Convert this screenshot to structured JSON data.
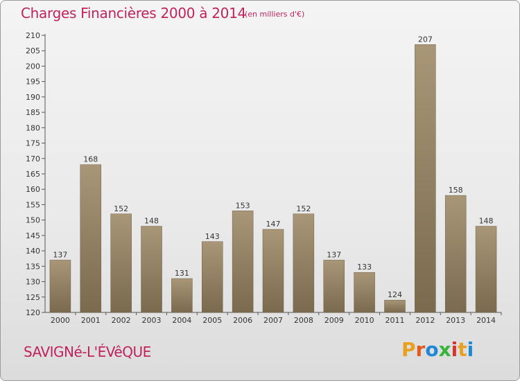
{
  "header": {
    "title": "Charges Financières 2000 à 2014",
    "subtitle": "(en milliers d'€)"
  },
  "footer": {
    "city": "SAVIGNé-L'ÉVêQUE",
    "brand": "Proxiti"
  },
  "colors": {
    "title": "#c0235c",
    "bar_top": "#a89677",
    "bar_bottom": "#7a6a4e",
    "brand_letters": [
      "#e8a020",
      "#e05a1e",
      "#1e88d6",
      "#38b43a",
      "#d6342c",
      "#e8a020",
      "#1e88d6"
    ]
  },
  "chart_data": {
    "type": "bar",
    "title": "Charges Financières 2000 à 2014",
    "subtitle": "(en milliers d'€)",
    "xlabel": "",
    "ylabel": "",
    "categories": [
      "2000",
      "2001",
      "2002",
      "2003",
      "2004",
      "2005",
      "2006",
      "2007",
      "2008",
      "2009",
      "2010",
      "2011",
      "2012",
      "2013",
      "2014"
    ],
    "values": [
      137,
      168,
      152,
      148,
      131,
      143,
      153,
      147,
      152,
      137,
      133,
      124,
      207,
      158,
      148
    ],
    "ylim": [
      120,
      210
    ],
    "yticks": [
      120,
      125,
      130,
      135,
      140,
      145,
      150,
      155,
      160,
      165,
      170,
      175,
      180,
      185,
      190,
      195,
      200,
      205,
      210
    ],
    "grid": false,
    "legend": "none"
  }
}
